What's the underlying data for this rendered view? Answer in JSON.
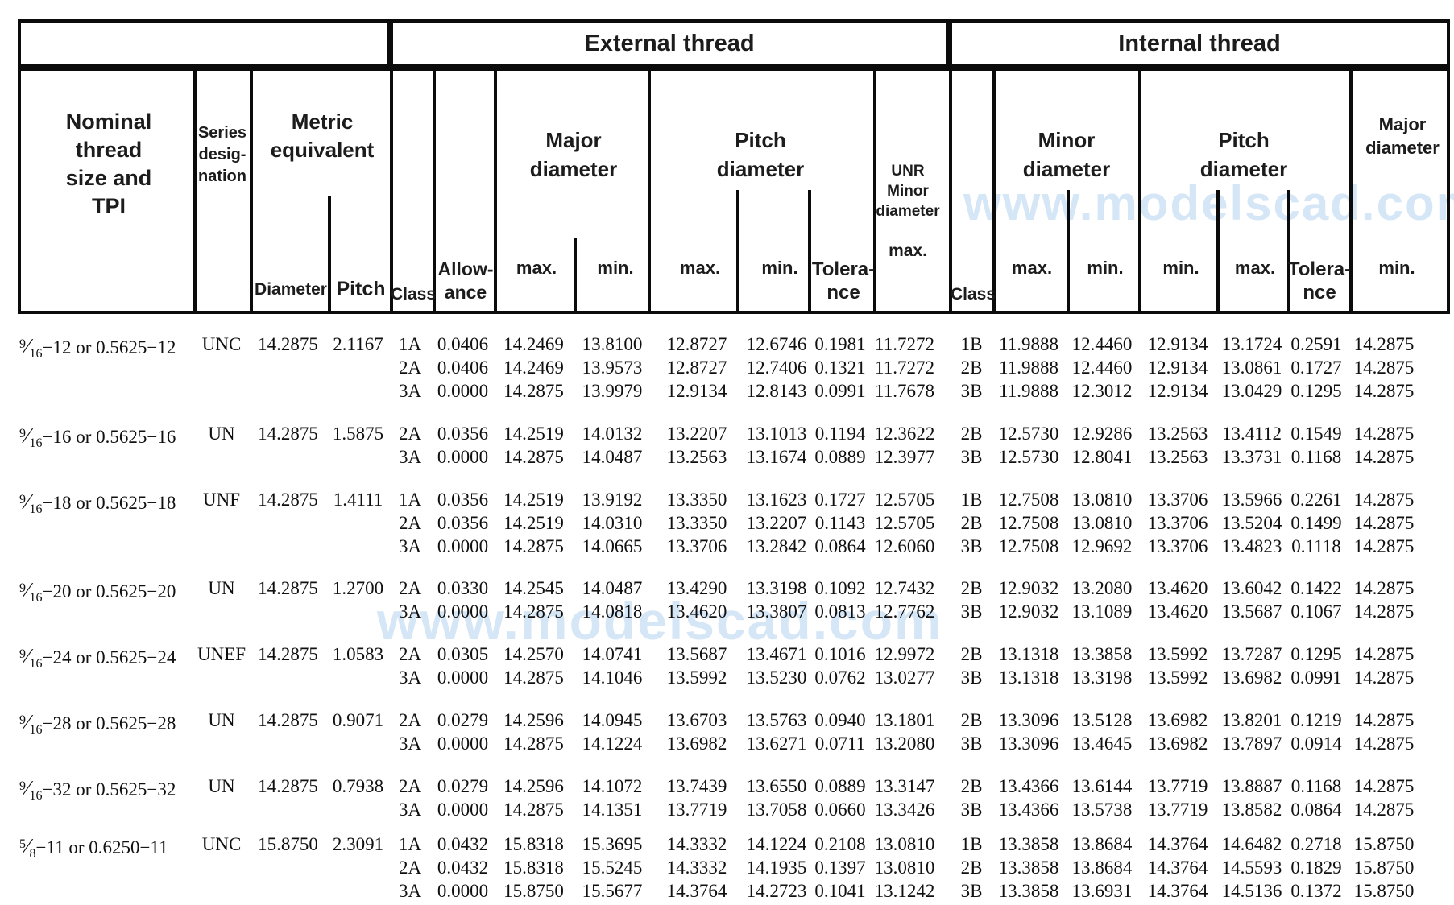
{
  "watermark": {
    "text": "www.modelscad.com",
    "color": "#d5e6f6"
  },
  "header": {
    "external_title": "External thread",
    "internal_title": "Internal thread",
    "nominal_label": "Nominal\nthread\nsize and\nTPI",
    "series_label": "Series\ndesig-\nnation",
    "metric_label": "Metric\nequivalent",
    "diameter_label": "Diameter",
    "pitch_label": "Pitch",
    "class_label": "Class",
    "allowance_label": "Allow-\nance",
    "major_diameter_label": "Major\ndiameter",
    "pitch_diameter_label": "Pitch\ndiameter",
    "minor_diameter_label": "Minor\ndiameter",
    "unr_label": "UNR\nMinor\ndiameter",
    "tolerance_label": "Tolera-\nnce",
    "max_label": "max.",
    "min_label": "min."
  },
  "rows": [
    {
      "size_num": "9",
      "size_den": "16",
      "size_rest": "−12 or 0.5625−12",
      "series": "UNC",
      "metric_diameter": "14.2875",
      "metric_pitch": "2.1167",
      "ext": [
        [
          "1A",
          "0.0406",
          "14.2469",
          "13.8100",
          "12.8727",
          "12.6746",
          "0.1981",
          "11.7272"
        ],
        [
          "2A",
          "0.0406",
          "14.2469",
          "13.9573",
          "12.8727",
          "12.7406",
          "0.1321",
          "11.7272"
        ],
        [
          "3A",
          "0.0000",
          "14.2875",
          "13.9979",
          "12.9134",
          "12.8143",
          "0.0991",
          "11.7678"
        ]
      ],
      "int": [
        [
          "1B",
          "11.9888",
          "12.4460",
          "12.9134",
          "13.1724",
          "0.2591",
          "14.2875"
        ],
        [
          "2B",
          "11.9888",
          "12.4460",
          "12.9134",
          "13.0861",
          "0.1727",
          "14.2875"
        ],
        [
          "3B",
          "11.9888",
          "12.3012",
          "12.9134",
          "13.0429",
          "0.1295",
          "14.2875"
        ]
      ]
    },
    {
      "size_num": "9",
      "size_den": "16",
      "size_rest": "−16 or 0.5625−16",
      "series": "UN",
      "metric_diameter": "14.2875",
      "metric_pitch": "1.5875",
      "ext": [
        [
          "2A",
          "0.0356",
          "14.2519",
          "14.0132",
          "13.2207",
          "13.1013",
          "0.1194",
          "12.3622"
        ],
        [
          "3A",
          "0.0000",
          "14.2875",
          "14.0487",
          "13.2563",
          "13.1674",
          "0.0889",
          "12.3977"
        ]
      ],
      "int": [
        [
          "2B",
          "12.5730",
          "12.9286",
          "13.2563",
          "13.4112",
          "0.1549",
          "14.2875"
        ],
        [
          "3B",
          "12.5730",
          "12.8041",
          "13.2563",
          "13.3731",
          "0.1168",
          "14.2875"
        ]
      ]
    },
    {
      "size_num": "9",
      "size_den": "16",
      "size_rest": "−18 or 0.5625−18",
      "series": "UNF",
      "metric_diameter": "14.2875",
      "metric_pitch": "1.4111",
      "ext": [
        [
          "1A",
          "0.0356",
          "14.2519",
          "13.9192",
          "13.3350",
          "13.1623",
          "0.1727",
          "12.5705"
        ],
        [
          "2A",
          "0.0356",
          "14.2519",
          "14.0310",
          "13.3350",
          "13.2207",
          "0.1143",
          "12.5705"
        ],
        [
          "3A",
          "0.0000",
          "14.2875",
          "14.0665",
          "13.3706",
          "13.2842",
          "0.0864",
          "12.6060"
        ]
      ],
      "int": [
        [
          "1B",
          "12.7508",
          "13.0810",
          "13.3706",
          "13.5966",
          "0.2261",
          "14.2875"
        ],
        [
          "2B",
          "12.7508",
          "13.0810",
          "13.3706",
          "13.5204",
          "0.1499",
          "14.2875"
        ],
        [
          "3B",
          "12.7508",
          "12.9692",
          "13.3706",
          "13.4823",
          "0.1118",
          "14.2875"
        ]
      ]
    },
    {
      "size_num": "9",
      "size_den": "16",
      "size_rest": "−20 or 0.5625−20",
      "series": "UN",
      "metric_diameter": "14.2875",
      "metric_pitch": "1.2700",
      "ext": [
        [
          "2A",
          "0.0330",
          "14.2545",
          "14.0487",
          "13.4290",
          "13.3198",
          "0.1092",
          "12.7432"
        ],
        [
          "3A",
          "0.0000",
          "14.2875",
          "14.0818",
          "13.4620",
          "13.3807",
          "0.0813",
          "12.7762"
        ]
      ],
      "int": [
        [
          "2B",
          "12.9032",
          "13.2080",
          "13.4620",
          "13.6042",
          "0.1422",
          "14.2875"
        ],
        [
          "3B",
          "12.9032",
          "13.1089",
          "13.4620",
          "13.5687",
          "0.1067",
          "14.2875"
        ]
      ]
    },
    {
      "size_num": "9",
      "size_den": "16",
      "size_rest": "−24 or 0.5625−24",
      "series": "UNEF",
      "metric_diameter": "14.2875",
      "metric_pitch": "1.0583",
      "ext": [
        [
          "2A",
          "0.0305",
          "14.2570",
          "14.0741",
          "13.5687",
          "13.4671",
          "0.1016",
          "12.9972"
        ],
        [
          "3A",
          "0.0000",
          "14.2875",
          "14.1046",
          "13.5992",
          "13.5230",
          "0.0762",
          "13.0277"
        ]
      ],
      "int": [
        [
          "2B",
          "13.1318",
          "13.3858",
          "13.5992",
          "13.7287",
          "0.1295",
          "14.2875"
        ],
        [
          "3B",
          "13.1318",
          "13.3198",
          "13.5992",
          "13.6982",
          "0.0991",
          "14.2875"
        ]
      ]
    },
    {
      "size_num": "9",
      "size_den": "16",
      "size_rest": "−28 or 0.5625−28",
      "series": "UN",
      "metric_diameter": "14.2875",
      "metric_pitch": "0.9071",
      "ext": [
        [
          "2A",
          "0.0279",
          "14.2596",
          "14.0945",
          "13.6703",
          "13.5763",
          "0.0940",
          "13.1801"
        ],
        [
          "3A",
          "0.0000",
          "14.2875",
          "14.1224",
          "13.6982",
          "13.6271",
          "0.0711",
          "13.2080"
        ]
      ],
      "int": [
        [
          "2B",
          "13.3096",
          "13.5128",
          "13.6982",
          "13.8201",
          "0.1219",
          "14.2875"
        ],
        [
          "3B",
          "13.3096",
          "13.4645",
          "13.6982",
          "13.7897",
          "0.0914",
          "14.2875"
        ]
      ]
    },
    {
      "size_num": "9",
      "size_den": "16",
      "size_rest": "−32 or 0.5625−32",
      "series": "UN",
      "metric_diameter": "14.2875",
      "metric_pitch": "0.7938",
      "ext": [
        [
          "2A",
          "0.0279",
          "14.2596",
          "14.1072",
          "13.7439",
          "13.6550",
          "0.0889",
          "13.3147"
        ],
        [
          "3A",
          "0.0000",
          "14.2875",
          "14.1351",
          "13.7719",
          "13.7058",
          "0.0660",
          "13.3426"
        ]
      ],
      "int": [
        [
          "2B",
          "13.4366",
          "13.6144",
          "13.7719",
          "13.8887",
          "0.1168",
          "14.2875"
        ],
        [
          "3B",
          "13.4366",
          "13.5738",
          "13.7719",
          "13.8582",
          "0.0864",
          "14.2875"
        ]
      ]
    },
    {
      "size_num": "5",
      "size_den": "8",
      "size_rest": "−11 or 0.6250−11",
      "series": "UNC",
      "metric_diameter": "15.8750",
      "metric_pitch": "2.3091",
      "ext": [
        [
          "1A",
          "0.0432",
          "15.8318",
          "15.3695",
          "14.3332",
          "14.1224",
          "0.2108",
          "13.0810"
        ],
        [
          "2A",
          "0.0432",
          "15.8318",
          "15.5245",
          "14.3332",
          "14.1935",
          "0.1397",
          "13.0810"
        ],
        [
          "3A",
          "0.0000",
          "15.8750",
          "15.5677",
          "14.3764",
          "14.2723",
          "0.1041",
          "13.1242"
        ]
      ],
      "int": [
        [
          "1B",
          "13.3858",
          "13.8684",
          "14.3764",
          "14.6482",
          "0.2718",
          "15.8750"
        ],
        [
          "2B",
          "13.3858",
          "13.8684",
          "14.3764",
          "14.5593",
          "0.1829",
          "15.8750"
        ],
        [
          "3B",
          "13.3858",
          "13.6931",
          "14.3764",
          "14.5136",
          "0.1372",
          "15.8750"
        ]
      ]
    }
  ]
}
